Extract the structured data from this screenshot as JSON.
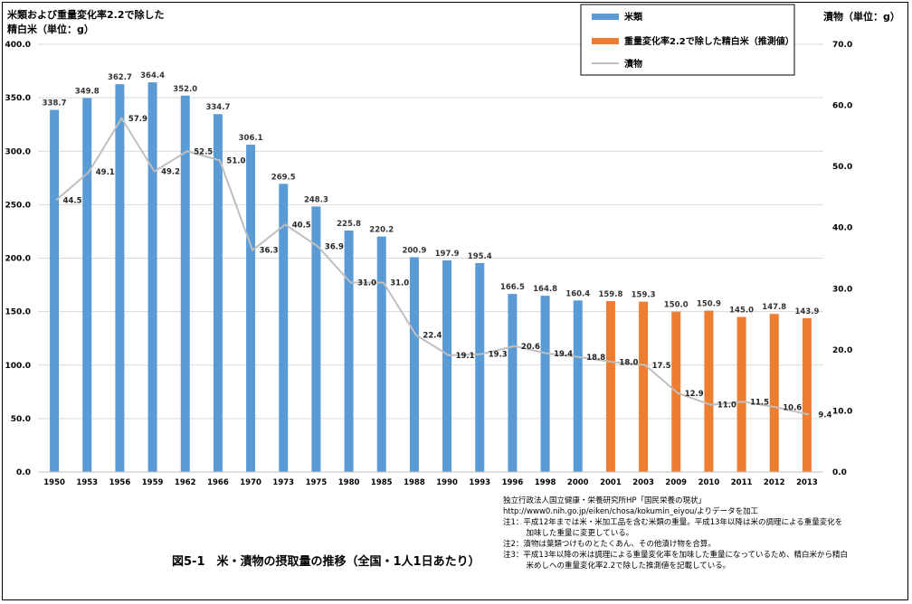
{
  "chart_data": {
    "type": "bar+line",
    "left_axis_title_line1": "米類および重量変化率2.2で除した",
    "left_axis_title_line2": "精白米（単位：g）",
    "right_axis_title": "漬物（単位：g）",
    "y_left": {
      "min": 0,
      "max": 400,
      "step": 50
    },
    "y_right": {
      "min": 0,
      "max": 70,
      "step": 10
    },
    "categories": [
      "1950",
      "1953",
      "1956",
      "1959",
      "1962",
      "1966",
      "1970",
      "1973",
      "1975",
      "1980",
      "1985",
      "1988",
      "1990",
      "1993",
      "1996",
      "1998",
      "2000",
      "2001",
      "2003",
      "2009",
      "2010",
      "2011",
      "2012",
      "2013"
    ],
    "bar_values": [
      338.7,
      349.8,
      362.7,
      364.4,
      352.0,
      334.7,
      306.1,
      269.5,
      248.3,
      225.8,
      220.2,
      200.9,
      197.9,
      195.4,
      166.5,
      164.8,
      160.4,
      159.8,
      159.3,
      150.0,
      150.9,
      145.0,
      147.8,
      143.9
    ],
    "bar_series": [
      {
        "name": "米類",
        "color": "#5B9BD5",
        "count": 17
      },
      {
        "name": "重量変化率2.2で除した精白米（推測値）",
        "color": "#ED7D31"
      }
    ],
    "line_series": {
      "name": "漬物",
      "color": "#BFBFBF",
      "values": [
        44.5,
        49.1,
        57.9,
        49.2,
        52.5,
        51.0,
        36.3,
        40.5,
        36.9,
        31.0,
        31.0,
        22.4,
        19.1,
        19.3,
        20.6,
        19.4,
        18.8,
        18.0,
        17.5,
        12.9,
        11.0,
        11.5,
        10.6,
        9.4
      ]
    },
    "legend_position": "top-right",
    "grid": true
  },
  "figure_title": "図5-1　米・漬物の摂取量の推移（全国・1人1日あたり）",
  "source_notes": [
    "独立行政法人国立健康・栄養研究所HP「国民栄養の現状」",
    "http://www0.nih.go.jp/eiken/chosa/kokumin_eiyou/よりデータを加工",
    "注1：平成12年までは米・米加工品を含む米類の重量。平成13年以降は米の調理による重量変化を",
    "　　　加味した重量に変更している。",
    "注2：漬物は葉類つけものとたくあん、その他漬け物を合算。",
    "注3：平成13年以降の米は調理による重量変化率を加味した重量になっているため、精白米から精白",
    "　　　米めしへの重量変化率2.2で除した推測値を記載している。"
  ]
}
